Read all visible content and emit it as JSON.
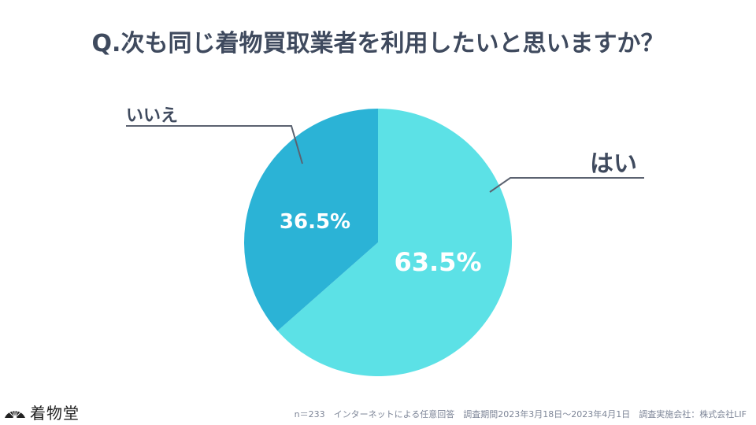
{
  "chart_data": {
    "type": "pie",
    "title": "Q.次も同じ着物買取業者を利用したいと思いますか？",
    "slices": [
      {
        "label": "はい",
        "value": 63.5,
        "display": "63.5%",
        "color": "#5ce1e6"
      },
      {
        "label": "いいえ",
        "value": 36.5,
        "display": "36.5%",
        "color": "#2bb3d6"
      }
    ]
  },
  "footer": {
    "note": "n＝233　インターネットによる任意回答　調査期間2023年3月18日〜2023年4月1日　調査実施会社：株式会社LIF"
  },
  "logo": {
    "text": "着物堂"
  },
  "colors": {
    "title": "#3f4a5e",
    "leader": "#5b6270"
  }
}
